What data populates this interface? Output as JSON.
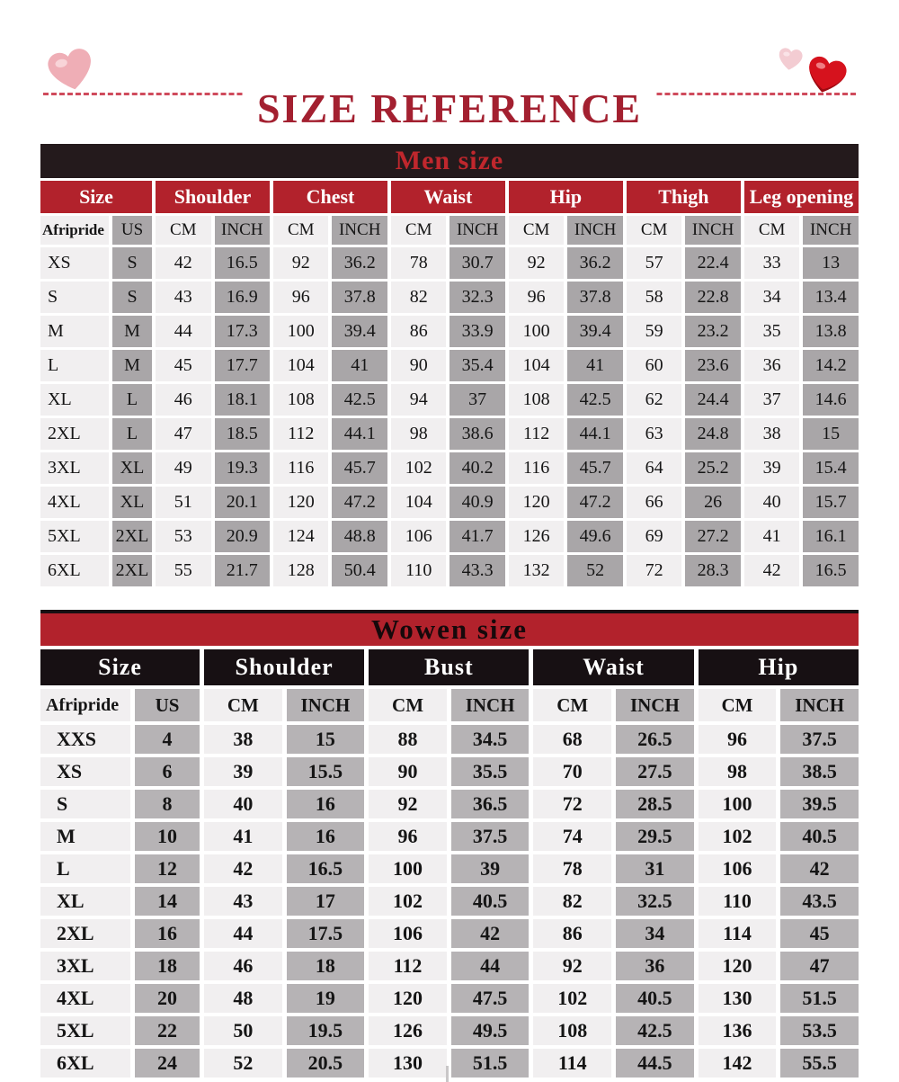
{
  "title": "SIZE REFERENCE",
  "colors": {
    "title_red": "#a32030",
    "dash_red": "#cf4b5c",
    "header_red": "#b2222c",
    "dark_bar": "#241a1c",
    "men_bar_text_red": "#c0272d",
    "women_header_black": "#171013",
    "light_cell": "#f1eff0",
    "men_gray_cell": "#a9a6a8",
    "women_gray_cell": "#b6b3b5",
    "pink_heart": "#efaeb6",
    "pale_pink_heart": "#f3ccd2",
    "red_heart": "#d6121d"
  },
  "decor": {
    "left_heart": "pink-heart",
    "right_small_heart": "pale-pink-heart",
    "right_big_heart": "red-heart"
  },
  "men_table": {
    "title": "Men size",
    "groups": [
      "Size",
      "Shoulder",
      "Chest",
      "Waist",
      "Hip",
      "Thigh",
      "Leg opening"
    ],
    "subheaders": [
      "Afripride",
      "US",
      "CM",
      "INCH",
      "CM",
      "INCH",
      "CM",
      "INCH",
      "CM",
      "INCH",
      "CM",
      "INCH",
      "CM",
      "INCH"
    ],
    "rows": [
      [
        "XS",
        "S",
        "42",
        "16.5",
        "92",
        "36.2",
        "78",
        "30.7",
        "92",
        "36.2",
        "57",
        "22.4",
        "33",
        "13"
      ],
      [
        "S",
        "S",
        "43",
        "16.9",
        "96",
        "37.8",
        "82",
        "32.3",
        "96",
        "37.8",
        "58",
        "22.8",
        "34",
        "13.4"
      ],
      [
        "M",
        "M",
        "44",
        "17.3",
        "100",
        "39.4",
        "86",
        "33.9",
        "100",
        "39.4",
        "59",
        "23.2",
        "35",
        "13.8"
      ],
      [
        "L",
        "M",
        "45",
        "17.7",
        "104",
        "41",
        "90",
        "35.4",
        "104",
        "41",
        "60",
        "23.6",
        "36",
        "14.2"
      ],
      [
        "XL",
        "L",
        "46",
        "18.1",
        "108",
        "42.5",
        "94",
        "37",
        "108",
        "42.5",
        "62",
        "24.4",
        "37",
        "14.6"
      ],
      [
        "2XL",
        "L",
        "47",
        "18.5",
        "112",
        "44.1",
        "98",
        "38.6",
        "112",
        "44.1",
        "63",
        "24.8",
        "38",
        "15"
      ],
      [
        "3XL",
        "XL",
        "49",
        "19.3",
        "116",
        "45.7",
        "102",
        "40.2",
        "116",
        "45.7",
        "64",
        "25.2",
        "39",
        "15.4"
      ],
      [
        "4XL",
        "XL",
        "51",
        "20.1",
        "120",
        "47.2",
        "104",
        "40.9",
        "120",
        "47.2",
        "66",
        "26",
        "40",
        "15.7"
      ],
      [
        "5XL",
        "2XL",
        "53",
        "20.9",
        "124",
        "48.8",
        "106",
        "41.7",
        "126",
        "49.6",
        "69",
        "27.2",
        "41",
        "16.1"
      ],
      [
        "6XL",
        "2XL",
        "55",
        "21.7",
        "128",
        "50.4",
        "110",
        "43.3",
        "132",
        "52",
        "72",
        "28.3",
        "42",
        "16.5"
      ]
    ]
  },
  "women_table": {
    "title": "Wowen size",
    "groups": [
      "Size",
      "Shoulder",
      "Bust",
      "Waist",
      "Hip"
    ],
    "subheaders": [
      "Afripride",
      "US",
      "CM",
      "INCH",
      "CM",
      "INCH",
      "CM",
      "INCH",
      "CM",
      "INCH"
    ],
    "rows": [
      [
        "XXS",
        "4",
        "38",
        "15",
        "88",
        "34.5",
        "68",
        "26.5",
        "96",
        "37.5"
      ],
      [
        "XS",
        "6",
        "39",
        "15.5",
        "90",
        "35.5",
        "70",
        "27.5",
        "98",
        "38.5"
      ],
      [
        "S",
        "8",
        "40",
        "16",
        "92",
        "36.5",
        "72",
        "28.5",
        "100",
        "39.5"
      ],
      [
        "M",
        "10",
        "41",
        "16",
        "96",
        "37.5",
        "74",
        "29.5",
        "102",
        "40.5"
      ],
      [
        "L",
        "12",
        "42",
        "16.5",
        "100",
        "39",
        "78",
        "31",
        "106",
        "42"
      ],
      [
        "XL",
        "14",
        "43",
        "17",
        "102",
        "40.5",
        "82",
        "32.5",
        "110",
        "43.5"
      ],
      [
        "2XL",
        "16",
        "44",
        "17.5",
        "106",
        "42",
        "86",
        "34",
        "114",
        "45"
      ],
      [
        "3XL",
        "18",
        "46",
        "18",
        "112",
        "44",
        "92",
        "36",
        "120",
        "47"
      ],
      [
        "4XL",
        "20",
        "48",
        "19",
        "120",
        "47.5",
        "102",
        "40.5",
        "130",
        "51.5"
      ],
      [
        "5XL",
        "22",
        "50",
        "19.5",
        "126",
        "49.5",
        "108",
        "42.5",
        "136",
        "53.5"
      ],
      [
        "6XL",
        "24",
        "52",
        "20.5",
        "130",
        "51.5",
        "114",
        "44.5",
        "142",
        "55.5"
      ]
    ]
  }
}
